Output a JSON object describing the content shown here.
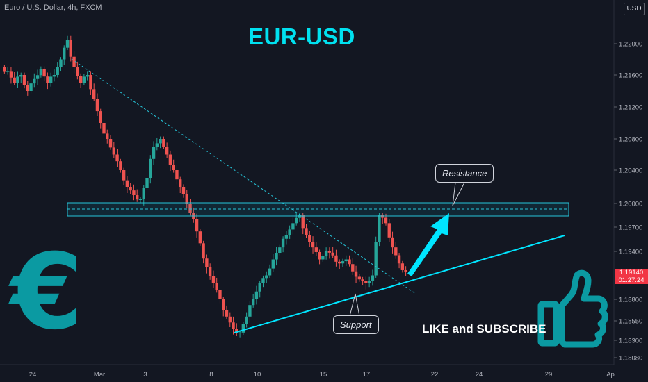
{
  "header": {
    "symbol": "Euro / U.S. Dollar, 4h, FXCM",
    "currency": "USD"
  },
  "annotations": {
    "title": "EUR-USD",
    "resistance_label": "Resistance",
    "support_label": "Support",
    "cta": "LIKE and SUBSCRIBE",
    "euro_symbol": "€",
    "thumbs_up_icon": "thumbs-up-icon"
  },
  "price_tag": {
    "price": "1.19140",
    "countdown": "01:27:24"
  },
  "colors": {
    "up": "#26a69a",
    "down": "#ef5350",
    "accent": "#00e5ff",
    "euro": "#0b9aa2",
    "background": "#131722",
    "price_tag": "#f23645"
  },
  "chart_data": {
    "type": "candlestick",
    "interval": "4h",
    "y_axis": {
      "ticks": [
        1.22,
        1.216,
        1.212,
        1.208,
        1.204,
        1.2,
        1.197,
        1.194,
        1.188,
        1.1855,
        1.183,
        1.1808
      ],
      "tick_labels": [
        "1.22000",
        "1.21600",
        "1.21200",
        "1.20800",
        "1.20400",
        "1.20000",
        "1.19700",
        "1.19400",
        "1.18800",
        "1.18550",
        "1.18300",
        "1.18080"
      ],
      "range": [
        1.1785,
        1.2246
      ]
    },
    "x_axis": {
      "tick_labels": [
        "24",
        "Mar",
        "3",
        "8",
        "10",
        "15",
        "17",
        "22",
        "24",
        "29",
        "Ap"
      ]
    },
    "ohlc_close_path": [
      1.2165,
      1.215,
      1.216,
      1.214,
      1.2155,
      1.2168,
      1.215,
      1.216,
      1.218,
      1.2205,
      1.217,
      1.215,
      1.216,
      1.213,
      1.21,
      1.208,
      1.206,
      1.204,
      1.202,
      1.201,
      1.2005,
      1.203,
      1.207,
      1.208,
      1.206,
      1.204,
      1.202,
      1.2,
      1.198,
      1.195,
      1.192,
      1.19,
      1.188,
      1.186,
      1.1845,
      1.184,
      1.186,
      1.188,
      1.19,
      1.191,
      1.193,
      1.1945,
      1.196,
      1.1975,
      1.1985,
      1.196,
      1.1945,
      1.193,
      1.194,
      1.1935,
      1.1925,
      1.193,
      1.1915,
      1.1905,
      1.19,
      1.191,
      1.1985,
      1.1975,
      1.1945,
      1.1925,
      1.1914
    ],
    "resistance_zone": [
      1.1986,
      1.2001
    ],
    "resistance_level": 1.1994,
    "last_price": 1.1914
  }
}
